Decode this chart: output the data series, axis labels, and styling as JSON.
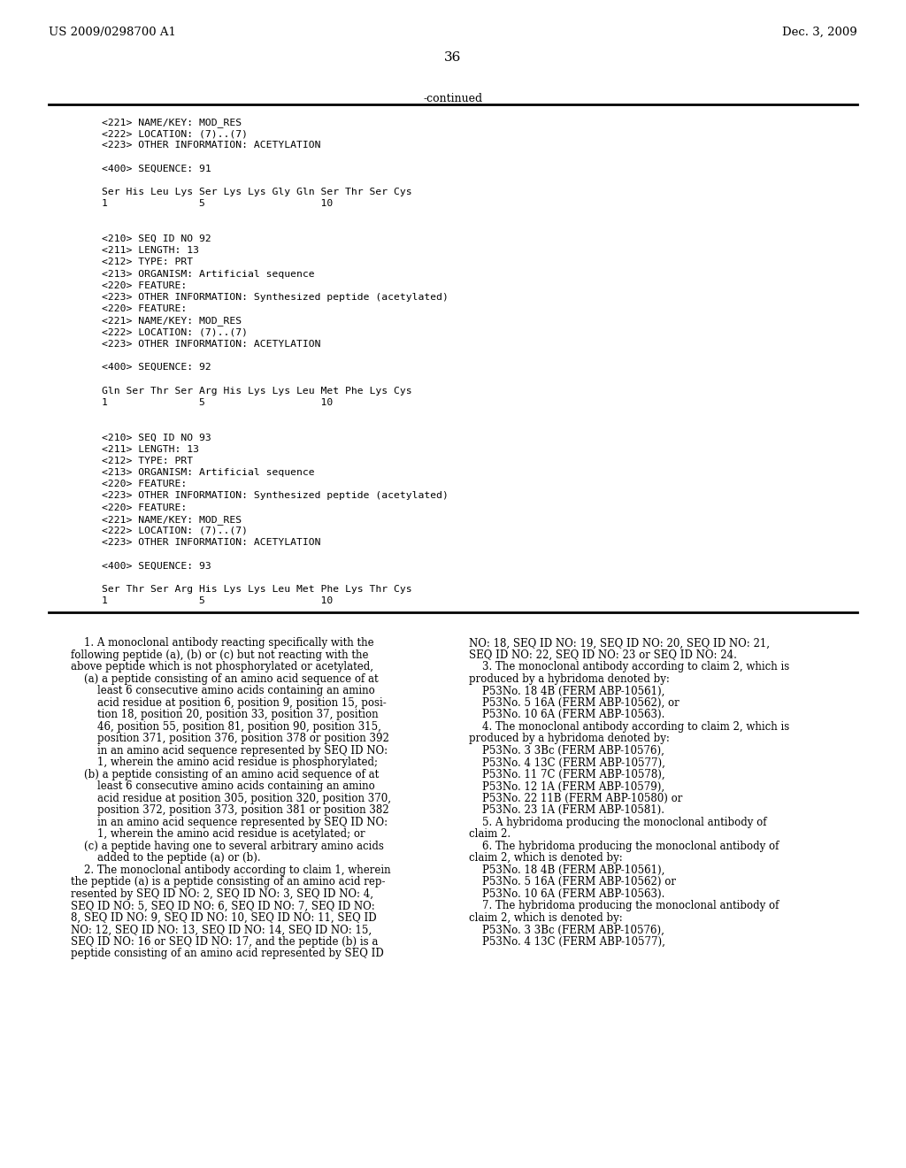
{
  "header_left": "US 2009/0298700 A1",
  "header_right": "Dec. 3, 2009",
  "page_number": "36",
  "continued_label": "-continued",
  "background_color": "#ffffff",
  "text_color": "#000000",
  "sequence_block": [
    "<221> NAME/KEY: MOD_RES",
    "<222> LOCATION: (7)..(7)",
    "<223> OTHER INFORMATION: ACETYLATION",
    "",
    "<400> SEQUENCE: 91",
    "",
    "Ser His Leu Lys Ser Lys Lys Gly Gln Ser Thr Ser Cys",
    "1               5                   10",
    "",
    "",
    "<210> SEQ ID NO 92",
    "<211> LENGTH: 13",
    "<212> TYPE: PRT",
    "<213> ORGANISM: Artificial sequence",
    "<220> FEATURE:",
    "<223> OTHER INFORMATION: Synthesized peptide (acetylated)",
    "<220> FEATURE:",
    "<221> NAME/KEY: MOD_RES",
    "<222> LOCATION: (7)..(7)",
    "<223> OTHER INFORMATION: ACETYLATION",
    "",
    "<400> SEQUENCE: 92",
    "",
    "Gln Ser Thr Ser Arg His Lys Lys Leu Met Phe Lys Cys",
    "1               5                   10",
    "",
    "",
    "<210> SEQ ID NO 93",
    "<211> LENGTH: 13",
    "<212> TYPE: PRT",
    "<213> ORGANISM: Artificial sequence",
    "<220> FEATURE:",
    "<223> OTHER INFORMATION: Synthesized peptide (acetylated)",
    "<220> FEATURE:",
    "<221> NAME/KEY: MOD_RES",
    "<222> LOCATION: (7)..(7)",
    "<223> OTHER INFORMATION: ACETYLATION",
    "",
    "<400> SEQUENCE: 93",
    "",
    "Ser Thr Ser Arg His Lys Lys Leu Met Phe Lys Thr Cys",
    "1               5                   10"
  ],
  "claims_left": [
    "    **1**. A monoclonal antibody reacting specifically with the",
    "following peptide (a), (b) or (c) but not reacting with the",
    "above peptide which is not phosphorylated or acetylated,",
    "    (a) a peptide consisting of an amino acid sequence of at",
    "        least 6 consecutive amino acids containing an amino",
    "        acid residue at position 6, position 9, position 15, posi-",
    "        tion 18, position 20, position 33, position 37, position",
    "        46, position 55, position 81, position 90, position 315,",
    "        position 371, position 376, position 378 or position 392",
    "        in an amino acid sequence represented by SEQ ID NO:",
    "        **1**, wherein the amino acid residue is phosphorylated;",
    "    (b) a peptide consisting of an amino acid sequence of at",
    "        least 6 consecutive amino acids containing an amino",
    "        acid residue at position 305, position 320, position 370,",
    "        position 372, position 373, position 381 or position 382",
    "        in an amino acid sequence represented by SEQ ID NO:",
    "        **1**, wherein the amino acid residue is acetylated; or",
    "    (c) a peptide having one to several arbitrary amino acids",
    "        added to the peptide (a) or (b).",
    "    **2**. The monoclonal antibody according to claim **1**, wherein",
    "the peptide (a) is a peptide consisting of an amino acid rep-",
    "resented by SEQ ID NO: 2, SEQ ID NO: 3, SEQ ID NO: 4,",
    "SEQ ID NO: 5, SEQ ID NO: 6, SEQ ID NO: 7, SEQ ID NO:",
    "8, SEQ ID NO: 9, SEQ ID NO: 10, SEQ ID NO: 11, SEQ ID",
    "NO: 12, SEQ ID NO: 13, SEQ ID NO: 14, SEQ ID NO: 15,",
    "SEQ ID NO: 16 or SEQ ID NO: 17, and the peptide (b) is a",
    "peptide consisting of an amino acid represented by SEQ ID"
  ],
  "claims_right": [
    "NO: 18, SEQ ID NO: 19, SEQ ID NO: 20, SEQ ID NO: 21,",
    "SEQ ID NO: 22, SEQ ID NO: 23 or SEQ ID NO: 24.",
    "    **3**. The monoclonal antibody according to claim **2**, which is",
    "produced by a hybridoma denoted by:",
    "    P53No. 18 4B (FERM ABP-10561),",
    "    P53No. 5 16A (FERM ABP-10562), or",
    "    P53No. 10 6A (FERM ABP-10563).",
    "    **4**. The monoclonal antibody according to claim **2**, which is",
    "produced by a hybridoma denoted by:",
    "    P53No. 3 3Bc (FERM ABP-10576),",
    "    P53No. 4 13C (FERM ABP-10577),",
    "    P53No. 11 7C (FERM ABP-10578),",
    "    P53No. 12 1A (FERM ABP-10579),",
    "    P53No. 22 11B (FERM ABP-10580) or",
    "    P53No. 23 1A (FERM ABP-10581).",
    "    **5**. A hybridoma producing the monoclonal antibody of",
    "claim **2**.",
    "    **6**. The hybridoma producing the monoclonal antibody of",
    "claim **2**, which is denoted by:",
    "    P53No. 18 4B (FERM ABP-10561),",
    "    P53No. 5 16A (FERM ABP-10562) or",
    "    P53No. 10 6A (FERM ABP-10563).",
    "    **7**. The hybridoma producing the monoclonal antibody of",
    "claim **2**, which is denoted by:",
    "    P53No. 3 3Bc (FERM ABP-10576),",
    "    P53No. 4 13C (FERM ABP-10577),"
  ]
}
